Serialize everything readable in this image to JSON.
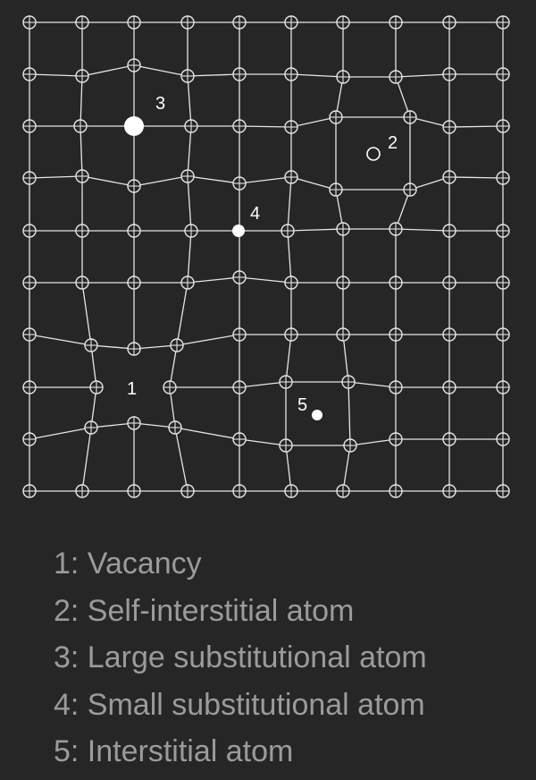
{
  "diagram": {
    "labels": {
      "vacancy": "1",
      "self_interstitial": "2",
      "large_substitutional": "3",
      "small_substitutional": "4",
      "interstitial": "5"
    }
  },
  "legend": {
    "items": [
      "1: Vacancy",
      "2: Self-interstitial atom",
      "3: Large substitutional atom",
      "4: Small substitutional atom",
      "5: Interstitial atom"
    ]
  },
  "colors": {
    "background": "#262626",
    "lattice": "#e6e6e6",
    "legend_text": "#9b9b9b"
  }
}
